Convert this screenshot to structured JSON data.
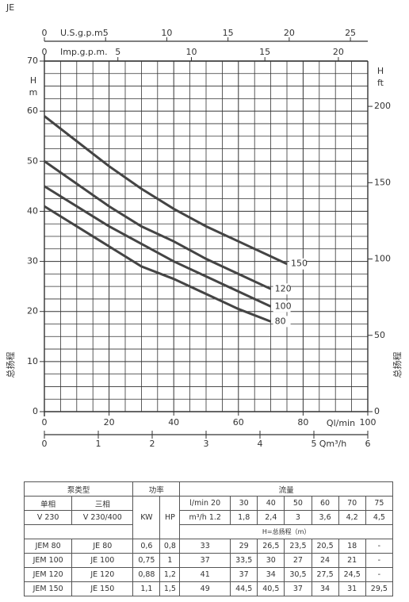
{
  "chart_data": {
    "type": "line",
    "title": "JE",
    "x": [
      0,
      20,
      30,
      40,
      50,
      60,
      70,
      75
    ],
    "series": [
      {
        "name": "150",
        "color": "#444444",
        "values": [
          59,
          49,
          44.5,
          40.5,
          37,
          34,
          31,
          29.5
        ]
      },
      {
        "name": "120",
        "color": "#444444",
        "values": [
          50,
          41,
          37,
          34,
          30.5,
          27.5,
          24.5,
          null
        ]
      },
      {
        "name": "100",
        "color": "#444444",
        "values": [
          45,
          37,
          33.5,
          30,
          27,
          24,
          21,
          null
        ]
      },
      {
        "name": "80",
        "color": "#444444",
        "values": [
          41,
          33,
          29,
          26.5,
          23.5,
          20.5,
          18,
          null
        ]
      }
    ],
    "x_label": "Ql/min",
    "xlim": [
      0,
      100
    ],
    "xticks": [
      0,
      20,
      40,
      60,
      80,
      100
    ],
    "y_label": [
      "H",
      "m"
    ],
    "ylim": [
      0,
      70
    ],
    "yticks": [
      0,
      10,
      20,
      30,
      40,
      50,
      60,
      70
    ],
    "y2_label": [
      "H",
      "ft"
    ],
    "y2lim": [
      0,
      229.66
    ],
    "y2ticks": [
      0,
      50,
      100,
      150,
      200
    ],
    "side_label": "总扬程",
    "top_axes": [
      {
        "label": "U.S.g.p.m.",
        "xlim": [
          0,
          26.42
        ],
        "xticks": [
          0,
          5,
          10,
          15,
          20,
          25
        ]
      },
      {
        "label": "Imp.g.p.m.",
        "xlim": [
          0,
          22
        ],
        "xticks": [
          0,
          5,
          10,
          15,
          20
        ]
      }
    ],
    "bottom_axis2": {
      "label": "Qm³/h",
      "xlim": [
        0,
        6
      ],
      "xticks": [
        0,
        1,
        2,
        3,
        4,
        5,
        6
      ]
    },
    "grid": true
  },
  "table": {
    "header": {
      "pump_type": "泵类型",
      "single": "单相",
      "three": "三相",
      "v_single": "V 230",
      "v_three": "V 230/400",
      "power": "功率",
      "kw": "KW",
      "hp": "HP",
      "flow": "流量",
      "lmin": "l/min",
      "m3h": "m³/h",
      "head": "H=总扬程（m）"
    },
    "flow_lmin": [
      "20",
      "30",
      "40",
      "50",
      "60",
      "70",
      "75"
    ],
    "flow_m3h": [
      "1.2",
      "1,8",
      "2,4",
      "3",
      "3,6",
      "4,2",
      "4,5"
    ],
    "rows": [
      [
        "JEM 80",
        "JE 80",
        "0,6",
        "0,8",
        "33",
        "29",
        "26,5",
        "23,5",
        "20,5",
        "18",
        "-"
      ],
      [
        "JEM 100",
        "JE 100",
        "0,75",
        "1",
        "37",
        "33,5",
        "30",
        "27",
        "24",
        "21",
        "-"
      ],
      [
        "JEM 120",
        "JE 120",
        "0,88",
        "1,2",
        "41",
        "37",
        "34",
        "30,5",
        "27,5",
        "24,5",
        "-"
      ],
      [
        "JEM 150",
        "JE 150",
        "1,1",
        "1,5",
        "49",
        "44,5",
        "40,5",
        "37",
        "34",
        "31",
        "29,5"
      ]
    ]
  }
}
